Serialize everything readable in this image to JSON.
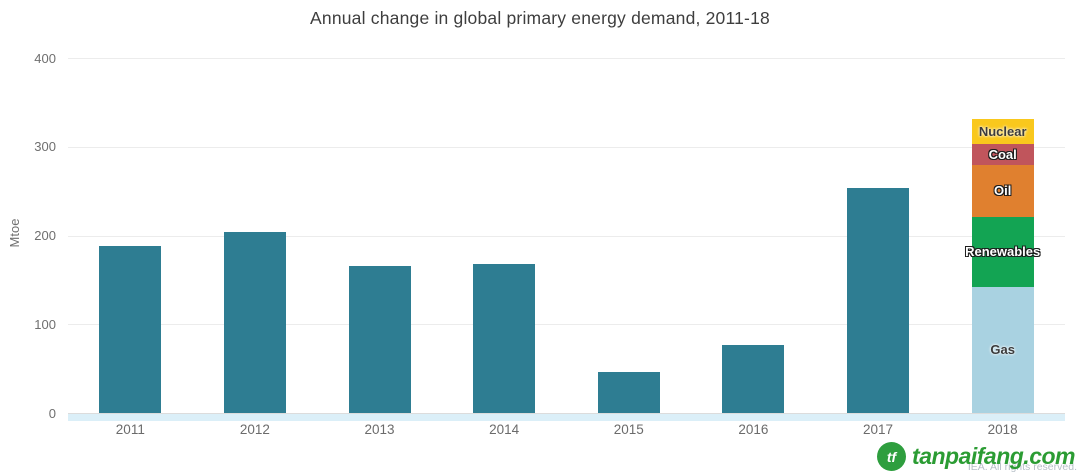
{
  "title": "Annual change in global primary energy demand, 2011-18",
  "chart_data": {
    "type": "bar",
    "title": "Annual change in global primary energy demand, 2011-18",
    "xlabel": "",
    "ylabel": "Mtoe",
    "ylim": [
      0,
      400
    ],
    "yticks": [
      0,
      100,
      200,
      300,
      400
    ],
    "grid": true,
    "legend_position": "labels-inside-2018-stack",
    "categories": [
      "2011",
      "2012",
      "2013",
      "2014",
      "2015",
      "2016",
      "2017",
      "2018"
    ],
    "series_note": "2011-2017 are single teal total bars; 2018 is stacked by fuel",
    "total_color": "#2e7d92",
    "totals": [
      188,
      204,
      166,
      168,
      46,
      77,
      253,
      331
    ],
    "bars": [
      {
        "category": "2011",
        "segments": [
          {
            "label": null,
            "value": 188,
            "color": "#2e7d92",
            "text": "none"
          }
        ]
      },
      {
        "category": "2012",
        "segments": [
          {
            "label": null,
            "value": 204,
            "color": "#2e7d92",
            "text": "none"
          }
        ]
      },
      {
        "category": "2013",
        "segments": [
          {
            "label": null,
            "value": 166,
            "color": "#2e7d92",
            "text": "none"
          }
        ]
      },
      {
        "category": "2014",
        "segments": [
          {
            "label": null,
            "value": 168,
            "color": "#2e7d92",
            "text": "none"
          }
        ]
      },
      {
        "category": "2015",
        "segments": [
          {
            "label": null,
            "value": 46,
            "color": "#2e7d92",
            "text": "none"
          }
        ]
      },
      {
        "category": "2016",
        "segments": [
          {
            "label": null,
            "value": 77,
            "color": "#2e7d92",
            "text": "none"
          }
        ]
      },
      {
        "category": "2017",
        "segments": [
          {
            "label": null,
            "value": 253,
            "color": "#2e7d92",
            "text": "none"
          }
        ]
      },
      {
        "category": "2018",
        "segments": [
          {
            "label": "Gas",
            "value": 142,
            "color": "#a9d2e1",
            "text": "dark"
          },
          {
            "label": "Renewables",
            "value": 79,
            "color": "#13a453",
            "text": "light"
          },
          {
            "label": "Oil",
            "value": 58,
            "color": "#e0802f",
            "text": "light"
          },
          {
            "label": "Coal",
            "value": 24,
            "color": "#c0555c",
            "text": "light"
          },
          {
            "label": "Nuclear",
            "value": 28,
            "color": "#f9c81d",
            "text": "dark"
          }
        ]
      }
    ]
  },
  "watermark": {
    "copyright": "IEA. All rights reserved.",
    "site_text": "tanpaifang.com"
  }
}
